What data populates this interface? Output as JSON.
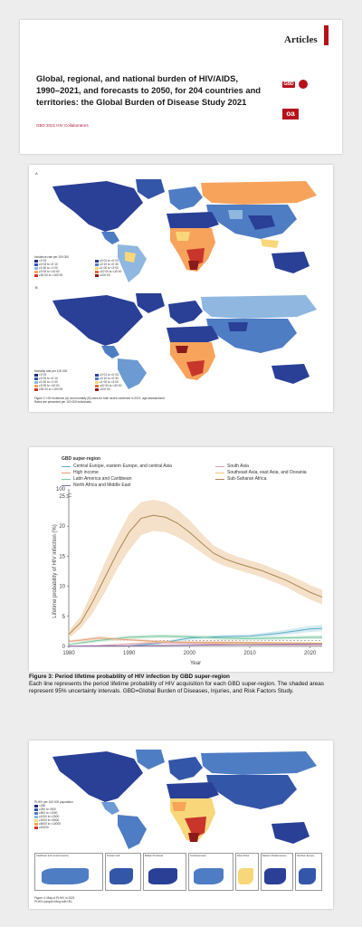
{
  "header": {
    "section_label": "Articles"
  },
  "article": {
    "title_lines": [
      "Global, regional, and national burden of HIV/AIDS,",
      "1990–2021, and forecasts to 2050, for 204 countries and",
      "territories: the Global Burden of Disease Study 2021"
    ],
    "authors": "GBD 2021 HIV Collaborators",
    "logo_gbd": "GBD",
    "logo_oa": "oa"
  },
  "figure2": {
    "panel_a": "A",
    "panel_b": "B",
    "legend_a_title": "Incidence rate per 100 000",
    "legend_a_items": [
      "<0·01",
      "≥0·01 to <0·03",
      "≥0·03 to <0·10",
      "≥0·10 to <0·30",
      "≥0·30 to <1·00",
      "≥1·00 to <3·00",
      "≥3·00 to <10·00",
      "≥10·00 to <30·00",
      "≥30·00 to <100·00",
      "≥100·00"
    ],
    "legend_b_title": "Mortality rate per 100 000",
    "legend_b_items": [
      "<0·01",
      "≥0·01 to <0·03",
      "≥0·03 to <0·10",
      "≥0·10 to <0·30",
      "≥0·30 to <1·00",
      "≥1·00 to <3·00",
      "≥3·00 to <10·00",
      "≥10·00 to <30·00",
      "≥30·00 to <100·00",
      "≥100·00"
    ],
    "caption": "Figure 2: HIV incidence (A) and mortality (B) rates for both sexes combined in 2021, age-standardised",
    "caption2": "Rates are presented per 100 000 individuals."
  },
  "figure3": {
    "legend_title": "GBD super-region",
    "legend_items": [
      {
        "name": "Central Europe, eastern Europe, and central Asia",
        "color": "#5aaec9"
      },
      {
        "name": "South Asia",
        "color": "#d9a0b8"
      },
      {
        "name": "High income",
        "color": "#e2a07a"
      },
      {
        "name": "Southeast Asia, east Asia, and Oceania",
        "color": "#efc27a"
      },
      {
        "name": "Latin America and Caribbean",
        "color": "#78c6a0"
      },
      {
        "name": "Sub-Saharan Africa",
        "color": "#a88650"
      },
      {
        "name": "North Africa and Middle East",
        "color": "#8f6aa8"
      }
    ],
    "caption_title": "Figure 3: Period lifetime probability of HIV infection by GBD super-region",
    "caption_body": "Each line represents the period lifetime probability of HIV acquisition for each GBD super-region. The shaded areas represent 95% uncertainty intervals. GBD=Global Burden of Diseases, Injuries, and Risk Factors Study."
  },
  "chart_data": {
    "type": "line",
    "title": "",
    "xlabel": "Year",
    "ylabel": "Lifetime probability of HIV infection (%)",
    "xlim": [
      1980,
      2022
    ],
    "ylim": [
      0,
      25
    ],
    "yticks": [
      0,
      5,
      10,
      15,
      20,
      25
    ],
    "ytick_top_extra": 100,
    "xticks": [
      1980,
      1990,
      2000,
      2010,
      2020
    ],
    "reference_line": 1,
    "series": [
      {
        "name": "Sub-Saharan Africa",
        "color": "#a88650",
        "band": "#f3dcc0",
        "x": [
          1980,
          1982,
          1984,
          1986,
          1988,
          1990,
          1992,
          1994,
          1996,
          1998,
          2000,
          2002,
          2004,
          2006,
          2008,
          2010,
          2012,
          2014,
          2016,
          2018,
          2020,
          2022
        ],
        "y": [
          2.0,
          4.0,
          7.5,
          11.5,
          15.5,
          19.0,
          21.3,
          21.8,
          21.5,
          20.5,
          19.0,
          17.2,
          15.5,
          14.5,
          13.8,
          13.2,
          12.6,
          11.8,
          11.0,
          10.0,
          9.0,
          8.2
        ],
        "lo": [
          1.4,
          3.0,
          5.6,
          9.0,
          12.8,
          16.0,
          18.5,
          19.2,
          19.0,
          18.2,
          17.0,
          15.6,
          14.2,
          13.3,
          12.7,
          12.1,
          11.5,
          10.7,
          9.9,
          8.8,
          7.8,
          7.0
        ],
        "hi": [
          2.6,
          5.0,
          9.4,
          14.0,
          18.2,
          22.0,
          24.0,
          24.4,
          24.0,
          22.8,
          21.0,
          18.8,
          16.8,
          15.7,
          14.9,
          14.3,
          13.7,
          12.9,
          12.1,
          11.2,
          10.2,
          9.4
        ]
      },
      {
        "name": "Central Europe, eastern Europe, and central Asia",
        "color": "#5aaec9",
        "band": "#cfe8ef",
        "x": [
          1980,
          1985,
          1990,
          1995,
          2000,
          2005,
          2010,
          2015,
          2020,
          2022
        ],
        "y": [
          0.02,
          0.05,
          0.1,
          0.5,
          1.4,
          1.6,
          1.7,
          2.2,
          2.9,
          3.0
        ],
        "lo": [
          0.01,
          0.03,
          0.07,
          0.35,
          1.1,
          1.3,
          1.4,
          1.8,
          2.4,
          2.5
        ],
        "hi": [
          0.03,
          0.08,
          0.15,
          0.7,
          1.7,
          1.9,
          2.0,
          2.6,
          3.4,
          3.6
        ]
      },
      {
        "name": "Latin America and Caribbean",
        "color": "#78c6a0",
        "band": "#d2ecdd",
        "x": [
          1980,
          1985,
          1990,
          1995,
          2000,
          2005,
          2010,
          2015,
          2020,
          2022
        ],
        "y": [
          0.3,
          1.0,
          1.5,
          1.7,
          1.6,
          1.4,
          1.3,
          1.4,
          1.5,
          1.5
        ],
        "lo": [
          0.2,
          0.7,
          1.2,
          1.4,
          1.3,
          1.1,
          1.0,
          1.1,
          1.2,
          1.2
        ],
        "hi": [
          0.4,
          1.3,
          1.8,
          2.0,
          1.9,
          1.7,
          1.6,
          1.7,
          1.8,
          1.8
        ]
      },
      {
        "name": "High income",
        "color": "#e2a07a",
        "band": "#f5dccd",
        "x": [
          1980,
          1985,
          1990,
          1995,
          2000,
          2005,
          2010,
          2015,
          2020,
          2022
        ],
        "y": [
          0.8,
          1.4,
          1.1,
          0.8,
          0.7,
          0.7,
          0.65,
          0.6,
          0.55,
          0.5
        ],
        "lo": [
          0.6,
          1.1,
          0.9,
          0.6,
          0.55,
          0.55,
          0.5,
          0.45,
          0.4,
          0.38
        ],
        "hi": [
          1.0,
          1.7,
          1.3,
          1.0,
          0.85,
          0.85,
          0.8,
          0.75,
          0.7,
          0.65
        ]
      },
      {
        "name": "Southeast Asia, east Asia, and Oceania",
        "color": "#efc27a",
        "band": "#f9e6c8",
        "x": [
          1980,
          1985,
          1990,
          1995,
          2000,
          2005,
          2010,
          2015,
          2020,
          2022
        ],
        "y": [
          0.05,
          0.1,
          0.4,
          0.7,
          0.6,
          0.5,
          0.5,
          0.55,
          0.55,
          0.55
        ],
        "lo": [
          0.03,
          0.07,
          0.3,
          0.5,
          0.45,
          0.38,
          0.38,
          0.42,
          0.42,
          0.42
        ],
        "hi": [
          0.07,
          0.13,
          0.5,
          0.9,
          0.75,
          0.62,
          0.62,
          0.68,
          0.68,
          0.68
        ]
      },
      {
        "name": "South Asia",
        "color": "#d9a0b8",
        "band": "#f0dbe5",
        "x": [
          1980,
          1985,
          1990,
          1995,
          2000,
          2005,
          2010,
          2015,
          2020,
          2022
        ],
        "y": [
          0.05,
          0.15,
          0.4,
          0.6,
          0.5,
          0.35,
          0.25,
          0.2,
          0.18,
          0.17
        ],
        "lo": [
          0.03,
          0.1,
          0.3,
          0.45,
          0.38,
          0.26,
          0.18,
          0.14,
          0.12,
          0.12
        ],
        "hi": [
          0.07,
          0.2,
          0.5,
          0.75,
          0.62,
          0.44,
          0.32,
          0.26,
          0.24,
          0.22
        ]
      },
      {
        "name": "North Africa and Middle East",
        "color": "#8f6aa8",
        "band": "#e2d6ea",
        "x": [
          1980,
          1985,
          1990,
          1995,
          2000,
          2005,
          2010,
          2015,
          2020,
          2022
        ],
        "y": [
          0.02,
          0.05,
          0.1,
          0.15,
          0.2,
          0.25,
          0.3,
          0.35,
          0.4,
          0.4
        ],
        "lo": [
          0.01,
          0.03,
          0.07,
          0.1,
          0.14,
          0.18,
          0.22,
          0.26,
          0.3,
          0.3
        ],
        "hi": [
          0.03,
          0.07,
          0.13,
          0.2,
          0.26,
          0.32,
          0.38,
          0.44,
          0.5,
          0.5
        ]
      }
    ]
  },
  "figure4": {
    "legend_title": "PLHIV per 100 000 population",
    "legend_items": [
      "<250",
      "≥250 to <500",
      "≥500 to <1000",
      "≥1000 to <2000",
      "≥2000 to <5000",
      "≥5000 to <10000",
      "≥10000"
    ],
    "insets": [
      "Caribbean and central America",
      "Persian Gulf",
      "Balkan Peninsula",
      "Southeast Asia",
      "West Africa",
      "Eastern Mediterranean",
      "Northern Europe"
    ],
    "caption": "Figure 4: Map of PLHIV in 2021",
    "caption2": "PLHIV=people living with HIV."
  },
  "colors": {
    "accent": "#b5121b",
    "map_dark_blue": "#2a3f96",
    "map_mid_blue": "#4f7dc4",
    "map_light_blue": "#8fb7e0",
    "map_orange": "#f7a35c",
    "map_red": "#c8352a",
    "map_dark_red": "#8b1a1a",
    "map_yellow": "#f8d77a"
  }
}
